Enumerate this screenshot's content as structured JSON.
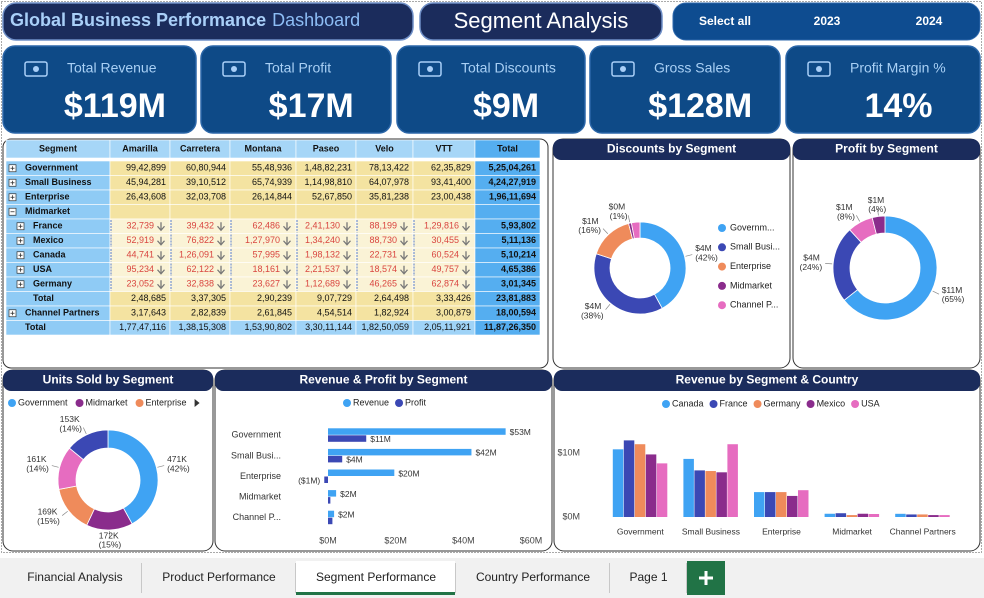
{
  "header": {
    "title": "Global Business Performance",
    "title_suffix": "Dashboard",
    "page_title": "Segment Analysis",
    "slicer": [
      "Select all",
      "2023",
      "2024"
    ]
  },
  "kpis": [
    {
      "label": "Total Revenue",
      "value": "$119M"
    },
    {
      "label": "Total Profit",
      "value": "$17M"
    },
    {
      "label": "Total Discounts",
      "value": "$9M"
    },
    {
      "label": "Gross Sales",
      "value": "$128M"
    },
    {
      "label": "Profit Margin %",
      "value": "14%"
    }
  ],
  "table": {
    "columns": [
      "Segment",
      "Amarilla",
      "Carretera",
      "Montana",
      "Paseo",
      "Velo",
      "VTT",
      "Total"
    ],
    "rows": [
      [
        "Government",
        "99,42,899",
        "60,80,944",
        "55,48,936",
        "1,48,82,231",
        "78,13,422",
        "62,35,829",
        "5,25,04,261"
      ],
      [
        "Small Business",
        "45,94,281",
        "39,10,512",
        "65,74,939",
        "1,14,98,810",
        "64,07,978",
        "93,41,400",
        "4,24,27,919"
      ],
      [
        "Enterprise",
        "26,43,608",
        "32,03,708",
        "26,14,844",
        "52,67,850",
        "35,81,238",
        "23,00,438",
        "1,96,11,694"
      ],
      [
        "Midmarket"
      ],
      [
        "France",
        "32,739",
        "39,432",
        "62,486",
        "2,41,130",
        "88,199",
        "1,29,816",
        "5,93,802"
      ],
      [
        "Mexico",
        "52,919",
        "76,822",
        "1,27,970",
        "1,34,240",
        "88,730",
        "30,455",
        "5,11,136"
      ],
      [
        "Canada",
        "44,741",
        "1,26,091",
        "57,995",
        "1,98,132",
        "22,731",
        "60,524",
        "5,10,214"
      ],
      [
        "USA",
        "95,234",
        "62,122",
        "18,161",
        "2,21,537",
        "18,574",
        "49,757",
        "4,65,386"
      ],
      [
        "Germany",
        "23,052",
        "32,838",
        "23,627",
        "1,12,689",
        "46,265",
        "62,874",
        "3,01,345"
      ],
      [
        "Total",
        "2,48,685",
        "3,37,305",
        "2,90,239",
        "9,07,729",
        "2,64,498",
        "3,33,426",
        "23,81,883"
      ],
      [
        "Channel Partners",
        "3,17,643",
        "2,82,839",
        "2,61,845",
        "4,54,514",
        "1,82,924",
        "3,00,879",
        "18,00,594"
      ],
      [
        "Total",
        "1,77,47,116",
        "1,38,15,308",
        "1,53,90,802",
        "3,30,11,144",
        "1,82,50,059",
        "2,05,11,921",
        "11,87,26,350"
      ]
    ]
  },
  "chart_data": [
    {
      "type": "pie",
      "title": "Discounts by Segment",
      "categories": [
        "Governm...",
        "Small Busi...",
        "Enterprise",
        "Midmarket",
        "Channel P..."
      ],
      "values": [
        42,
        38,
        16,
        1,
        3
      ],
      "value_labels": [
        "$4M (42%)",
        "$4M (38%)",
        "$1M (16%)",
        "$0M (1%)",
        null
      ],
      "colors": [
        "#3fa3f3",
        "#3b48b4",
        "#ef8b5b",
        "#8a2c8c",
        "#e66cc0"
      ],
      "legend": "right"
    },
    {
      "type": "pie",
      "title": "Profit by Segment",
      "values": [
        65,
        24,
        8,
        4
      ],
      "value_labels": [
        "$11M (65%)",
        "$4M (24%)",
        "$1M (8%)",
        "$1M (4%)"
      ],
      "colors": [
        "#3fa3f3",
        "#3b48b4",
        "#e66cc0",
        "#8a2c8c"
      ]
    },
    {
      "type": "pie",
      "title": "Units Sold by Segment",
      "categories": [
        "Government",
        "Midmarket",
        "Enterprise",
        null,
        null
      ],
      "values": [
        42,
        15,
        15,
        14,
        14
      ],
      "value_labels": [
        "471K (42%)",
        "172K (15%)",
        "169K (15%)",
        "161K (14%)",
        "153K (14%)"
      ],
      "colors": [
        "#3fa3f3",
        "#8a2c8c",
        "#ef8b5b",
        "#e66cc0",
        "#3b48b4"
      ],
      "legend": "top"
    },
    {
      "type": "bar",
      "orientation": "horizontal",
      "title": "Revenue & Profit by Segment",
      "categories": [
        "Government",
        "Small Busi...",
        "Enterprise",
        "Midmarket",
        "Channel P..."
      ],
      "series": [
        {
          "name": "Revenue",
          "color": "#3fa3f3",
          "values": [
            52.5,
            42.4,
            19.6,
            2.4,
            1.8
          ],
          "value_labels": [
            "$53M",
            "$42M",
            "$20M",
            "$2M",
            "$2M"
          ]
        },
        {
          "name": "Profit",
          "color": "#3b48b4",
          "values": [
            11.3,
            4.2,
            -1.1,
            0.7,
            1.3
          ],
          "value_labels": [
            "$11M",
            "$4M",
            "($1M)",
            null,
            null
          ]
        }
      ],
      "xlim": [
        0,
        60
      ],
      "xticks": [
        {
          "value": 0,
          "label": "$0M"
        },
        {
          "value": 20,
          "label": "$20M"
        },
        {
          "value": 40,
          "label": "$40M"
        },
        {
          "value": 60,
          "label": "$60M"
        }
      ],
      "legend": "top"
    },
    {
      "type": "bar",
      "orientation": "vertical",
      "title": "Revenue by Segment & Country",
      "categories": [
        "Government",
        "Small Business",
        "Enterprise",
        "Midmarket",
        "Channel Partners"
      ],
      "series": [
        {
          "name": "Canada",
          "color": "#3fa3f3",
          "values": [
            10.6,
            9.1,
            3.9,
            0.51,
            0.5
          ]
        },
        {
          "name": "France",
          "color": "#3b48b4",
          "values": [
            12.0,
            7.3,
            3.9,
            0.59,
            0.4
          ]
        },
        {
          "name": "Germany",
          "color": "#ef8b5b",
          "values": [
            11.4,
            7.2,
            3.9,
            0.3,
            0.4
          ]
        },
        {
          "name": "Mexico",
          "color": "#8a2c8c",
          "values": [
            9.8,
            7.0,
            3.3,
            0.51,
            0.3
          ]
        },
        {
          "name": "USA",
          "color": "#e66cc0",
          "values": [
            8.4,
            11.4,
            4.2,
            0.47,
            0.3
          ]
        }
      ],
      "ylim": [
        0,
        13
      ],
      "yticks": [
        {
          "value": 0,
          "label": "$0M"
        },
        {
          "value": 10,
          "label": "$10M"
        }
      ],
      "legend": "top"
    }
  ],
  "tabs": [
    "Financial Analysis",
    "Product Performance",
    "Segment Performance",
    "Country Performance",
    "Page 1"
  ],
  "active_tab": 2
}
